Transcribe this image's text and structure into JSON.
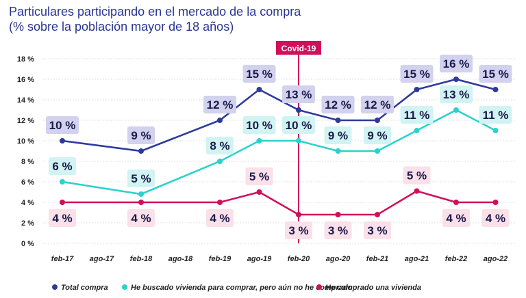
{
  "chart_data": {
    "type": "line",
    "title": "Particulares participando en el mercado de la compra",
    "subtitle": "(% sobre la población mayor de 18 años)",
    "categories": [
      "feb-17",
      "ago-17",
      "feb-18",
      "ago-18",
      "feb-19",
      "ago-19",
      "feb-20",
      "ago-20",
      "feb-21",
      "ago-21",
      "feb-22",
      "ago-22"
    ],
    "ylim": [
      0,
      18
    ],
    "yticks": [
      0,
      2,
      4,
      6,
      8,
      10,
      12,
      14,
      16,
      18
    ],
    "ytick_labels": [
      "0 %",
      "2 %",
      "4 %",
      "6 %",
      "8 %",
      "10 %",
      "12 %",
      "14 %",
      "16 %",
      "18 %"
    ],
    "grid": true,
    "annotation": {
      "label": "Covid-19",
      "at": "feb-20",
      "color": "#d0105a"
    },
    "series": [
      {
        "name": "Total compra",
        "color": "#2d3a9c",
        "label_bg": "#d2d2ef",
        "values": [
          10,
          null,
          9,
          null,
          12,
          15,
          13,
          12,
          12,
          15,
          16,
          15
        ],
        "labels": [
          "10 %",
          null,
          "9 %",
          null,
          "12 %",
          "15 %",
          "13 %",
          "12 %",
          "12 %",
          "15 %",
          "16 %",
          "15 %"
        ],
        "label_pos": [
          "above",
          null,
          "above",
          null,
          "above",
          "above",
          "above",
          "above",
          "above",
          "above",
          "above",
          "above"
        ]
      },
      {
        "name": "He buscado vivienda para comprar, pero aún no he comprado",
        "color": "#2bd2cd",
        "label_bg": "#d1f4f3",
        "values": [
          6,
          null,
          4.8,
          null,
          8,
          10,
          10,
          9,
          9,
          11,
          13,
          11
        ],
        "labels": [
          "6 %",
          null,
          "5 %",
          null,
          "8 %",
          "10 %",
          "10 %",
          "9 %",
          "9 %",
          "11 %",
          "13 %",
          "11 %"
        ],
        "label_pos": [
          "above",
          null,
          "above",
          null,
          "above",
          "above",
          "above",
          "above",
          "above",
          "above",
          "above",
          "above"
        ]
      },
      {
        "name": "He comprado una vivienda",
        "color": "#d0105a",
        "label_bg": "#fae0e9",
        "values": [
          4,
          null,
          4,
          null,
          4,
          5,
          2.8,
          2.8,
          2.8,
          5.1,
          4,
          4
        ],
        "labels": [
          "4 %",
          null,
          "4 %",
          null,
          "4 %",
          "5 %",
          "3 %",
          "3 %",
          "3 %",
          "5 %",
          "4 %",
          "4 %"
        ],
        "label_pos": [
          "below",
          null,
          "below",
          null,
          "below",
          "above",
          "below",
          "below",
          "below",
          "above",
          "below",
          "below"
        ]
      }
    ]
  }
}
